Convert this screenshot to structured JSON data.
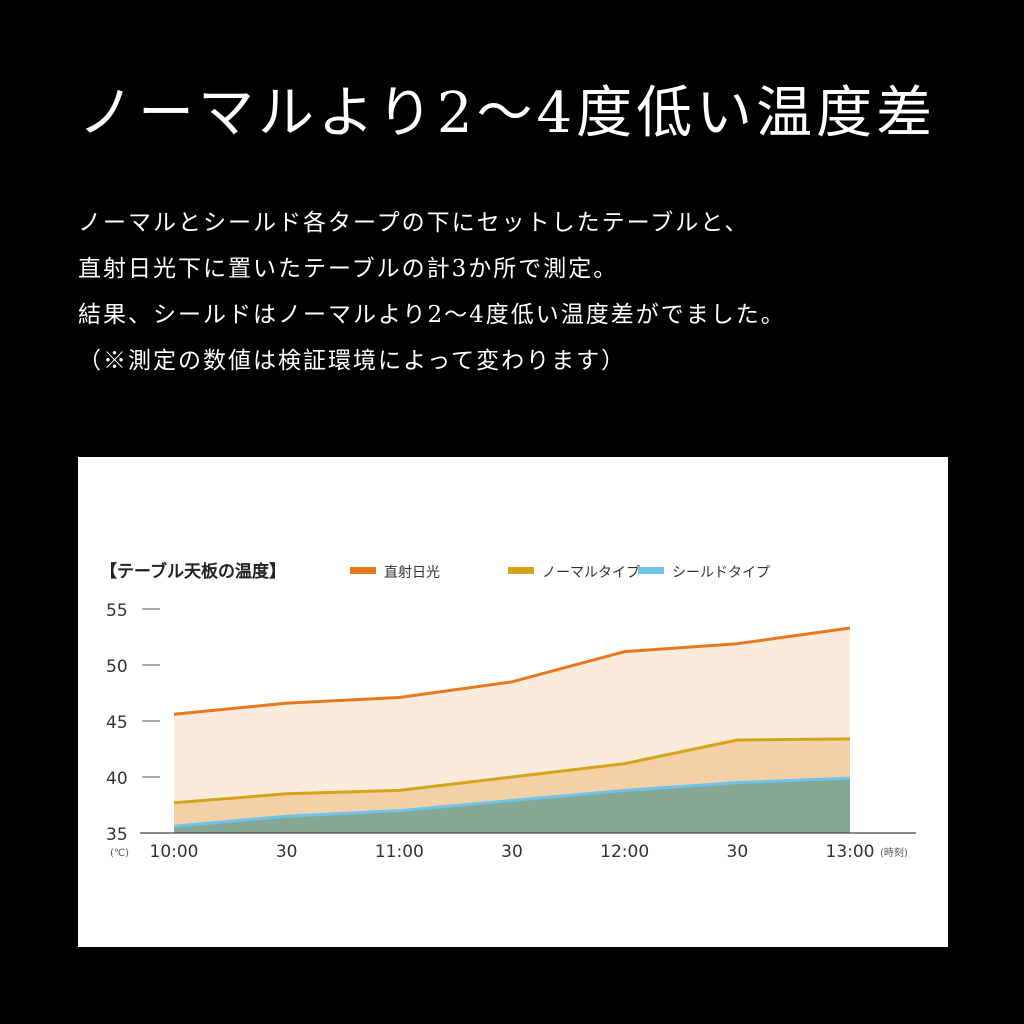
{
  "headline": "ノーマルより2〜4度低い温度差",
  "description": [
    "ノーマルとシールド各タープの下にセットしたテーブルと、",
    "直射日光下に置いたテーブルの計3か所で測定。",
    "結果、シールドはノーマルより2〜4度低い温度差がでました。",
    "（※測定の数値は検証環境によって変わります）"
  ],
  "chart_data": {
    "type": "area",
    "title": "【テーブル天板の温度】",
    "ylabel": "(℃)",
    "xlabel": "(時刻)",
    "categories": [
      "10:00",
      "30",
      "11:00",
      "30",
      "12:00",
      "30",
      "13:00"
    ],
    "ylim": [
      35,
      55
    ],
    "yticks": [
      55,
      50,
      45,
      40,
      35
    ],
    "series": [
      {
        "name": "直射日光",
        "color": "#e8781e",
        "fill": "#fbebdc",
        "values": [
          45.6,
          46.6,
          47.1,
          48.5,
          51.2,
          51.9,
          53.3
        ]
      },
      {
        "name": "ノーマルタイプ",
        "color": "#d4a418",
        "fill": "#f3d0a6",
        "values": [
          37.7,
          38.5,
          38.8,
          40.0,
          41.2,
          43.3,
          43.4
        ]
      },
      {
        "name": "シールドタイプ",
        "color": "#70c4ec",
        "fill": "#86a793",
        "values": [
          35.6,
          36.5,
          37.0,
          37.9,
          38.8,
          39.5,
          39.9
        ]
      }
    ]
  }
}
